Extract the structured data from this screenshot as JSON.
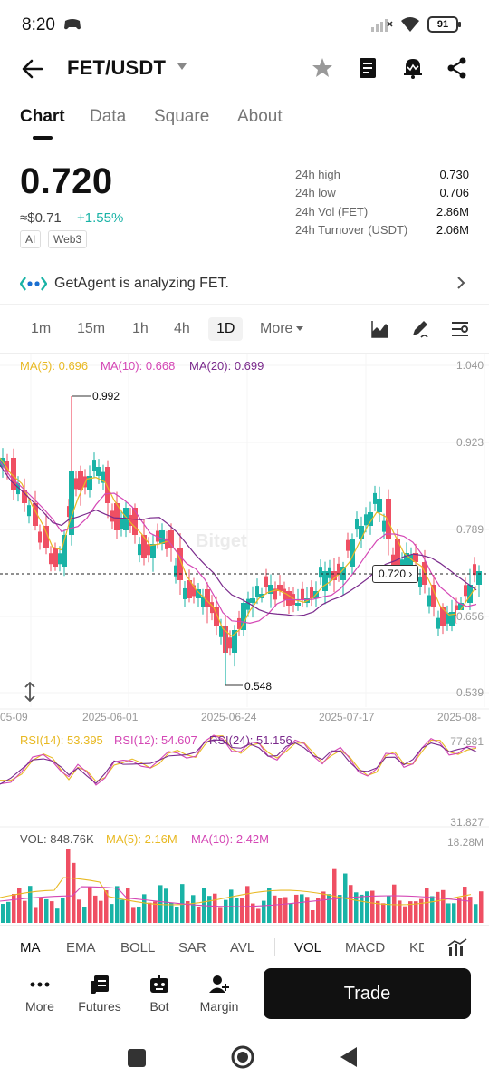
{
  "status_bar": {
    "time": "8:20",
    "battery": "91"
  },
  "header": {
    "pair": "FET/USDT"
  },
  "tabs": [
    "Chart",
    "Data",
    "Square",
    "About"
  ],
  "ticker": {
    "price": "0.720",
    "usd_value": "≈$0.71",
    "change": "+1.55%",
    "tags": [
      "AI",
      "Web3"
    ],
    "stats": [
      {
        "label": "24h high",
        "value": "0.730"
      },
      {
        "label": "24h low",
        "value": "0.706"
      },
      {
        "label": "24h Vol (FET)",
        "value": "2.86M"
      },
      {
        "label": "24h Turnover (USDT)",
        "value": "2.06M"
      }
    ]
  },
  "agent_banner": {
    "text": "GetAgent is analyzing FET."
  },
  "timeframes": {
    "items": [
      "1m",
      "15m",
      "1h",
      "4h",
      "1D"
    ],
    "more": "More",
    "selected": "1D"
  },
  "main_chart": {
    "ma_legend": [
      "MA(5): 0.696",
      "MA(10): 0.668",
      "MA(20): 0.699"
    ],
    "y_axis": [
      "1.040",
      "0.923",
      "0.789",
      "0.656",
      "0.539"
    ],
    "x_axis": [
      "05-09",
      "2025-06-01",
      "2025-06-24",
      "2025-07-17",
      "2025-08-"
    ],
    "high_label": "0.992",
    "low_label": "0.548",
    "last_price_tag": "0.720",
    "watermark": "Bitget"
  },
  "rsi_panel": {
    "legend": [
      "RSI(14): 53.395",
      "RSI(12): 54.607",
      "RSI(24): 51.156"
    ],
    "y_axis": [
      "77.681",
      "31.827"
    ]
  },
  "vol_panel": {
    "legend": [
      "VOL: 848.76K",
      "MA(5): 2.16M",
      "MA(10): 2.42M"
    ],
    "y_axis": [
      "18.28M"
    ]
  },
  "indicator_tabs": [
    "MA",
    "EMA",
    "BOLL",
    "SAR",
    "AVL",
    "VOL",
    "MACD",
    "KD"
  ],
  "actions": [
    "More",
    "Futures",
    "Bot",
    "Margin"
  ],
  "trade_button": "Trade",
  "colors": {
    "up": "#19b3a6",
    "down": "#ef4f63",
    "ma5": "#e8b923",
    "ma10": "#d447b5",
    "ma20": "#7a2a8c",
    "rsi14": "#e8b923",
    "rsi24": "#7a2a8c"
  },
  "icons": [
    "back-icon",
    "star-icon",
    "notebook-icon",
    "bell-icon",
    "share-icon",
    "chart-type-icon",
    "draw-icon",
    "settings-icon",
    "expand-icon",
    "grid-icon",
    "futures-icon",
    "bot-icon",
    "margin-icon"
  ]
}
